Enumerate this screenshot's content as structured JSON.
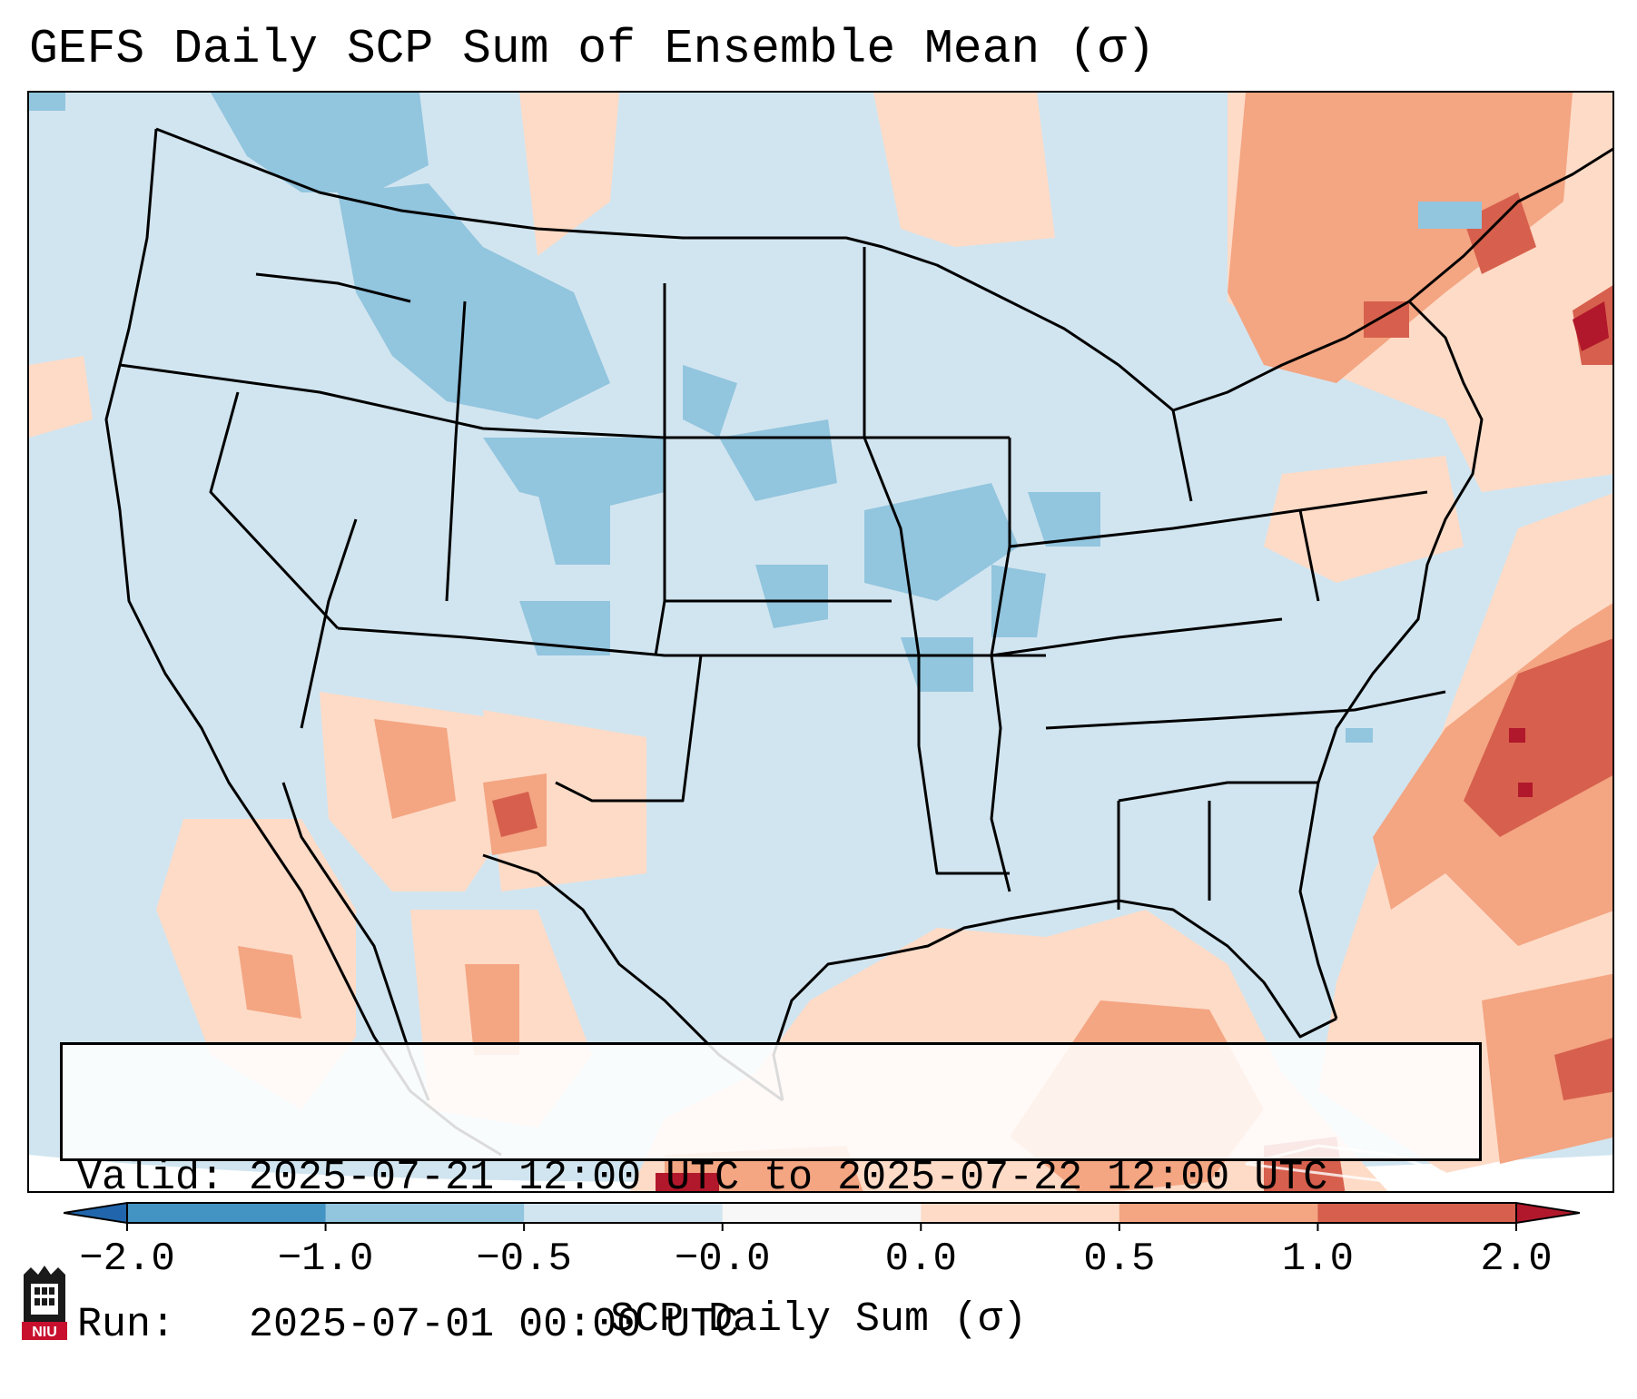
{
  "title": "GEFS Daily SCP Sum of Ensemble Mean (σ)",
  "info": {
    "valid_line": "Valid: 2025-07-21 12:00 UTC to 2025-07-22 12:00 UTC",
    "run_line": "Run:   2025-07-01 00:00 UTC"
  },
  "colorbar": {
    "label": "SCP Daily Sum (σ)",
    "ticks": [
      "−2.0",
      "−1.0",
      "−0.5",
      "−0.0",
      "0.0",
      "0.5",
      "1.0",
      "2.0"
    ],
    "colors": [
      "#2166ac",
      "#4393c3",
      "#92c5de",
      "#d1e5f0",
      "#f7f7f7",
      "#fddbc7",
      "#f4a582",
      "#d6604d",
      "#b2182b"
    ]
  },
  "map": {
    "projection": "CONUS Lambert",
    "base_color": "#d1e5f0",
    "region": "Contiguous United States"
  },
  "logo": {
    "text": "NIU"
  }
}
